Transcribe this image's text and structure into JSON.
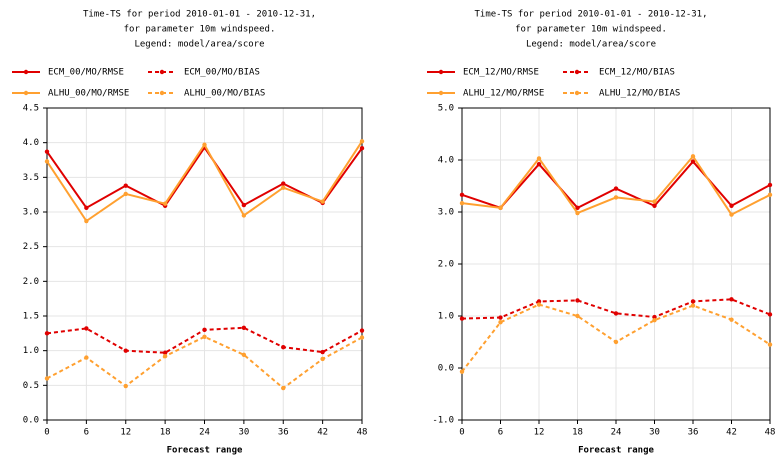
{
  "chart_data": [
    {
      "type": "line",
      "title": [
        "Time-TS for period 2010-01-01 - 2010-12-31,",
        "for parameter 10m windspeed.",
        "Legend: model/area/score"
      ],
      "x_label": "Forecast range",
      "x": [
        0,
        6,
        12,
        18,
        24,
        30,
        36,
        42,
        48
      ],
      "xlim": [
        0,
        48
      ],
      "xticks": [
        0,
        6,
        12,
        18,
        24,
        30,
        36,
        42,
        48
      ],
      "ylim": [
        0,
        4.5
      ],
      "yticks": [
        {
          "value": 0,
          "label": "0.0"
        },
        0.5,
        {
          "value": 1,
          "label": "1.0"
        },
        1.5,
        {
          "value": 2,
          "label": "2.0"
        },
        2.5,
        {
          "value": 3,
          "label": "3.0"
        },
        3.5,
        {
          "value": 4,
          "label": "4.0"
        },
        4.5
      ],
      "grid": true,
      "series": [
        {
          "name": "ECM_00/MO/RMSE",
          "color": "#e00000",
          "dashed": false,
          "values": [
            3.87,
            3.06,
            3.38,
            3.09,
            3.93,
            3.1,
            3.41,
            3.13,
            3.92
          ]
        },
        {
          "name": "ECM_00/MO/BIAS",
          "color": "#e00000",
          "dashed": true,
          "values": [
            1.25,
            1.32,
            1.0,
            0.97,
            1.3,
            1.33,
            1.05,
            0.98,
            1.29
          ]
        },
        {
          "name": "ALHU_00/MO/RMSE",
          "color": "#ffa030",
          "dashed": false,
          "values": [
            3.73,
            2.87,
            3.26,
            3.12,
            3.97,
            2.95,
            3.35,
            3.15,
            4.02
          ]
        },
        {
          "name": "ALHU_00/MO/BIAS",
          "color": "#ffa030",
          "dashed": true,
          "values": [
            0.6,
            0.9,
            0.49,
            0.92,
            1.2,
            0.94,
            0.46,
            0.88,
            1.19
          ]
        }
      ]
    },
    {
      "type": "line",
      "title": [
        "Time-TS for period 2010-01-01 - 2010-12-31,",
        "for parameter 10m windspeed.",
        "Legend: model/area/score"
      ],
      "x_label": "Forecast range",
      "x": [
        0,
        6,
        12,
        18,
        24,
        30,
        36,
        42,
        48
      ],
      "xlim": [
        0,
        48
      ],
      "xticks": [
        0,
        6,
        12,
        18,
        24,
        30,
        36,
        42,
        48
      ],
      "ylim": [
        -1,
        5
      ],
      "yticks": [
        {
          "value": -1,
          "label": "-1.0"
        },
        {
          "value": 0,
          "label": "0.0"
        },
        {
          "value": 1,
          "label": "1.0"
        },
        {
          "value": 2,
          "label": "2.0"
        },
        {
          "value": 3,
          "label": "3.0"
        },
        {
          "value": 4,
          "label": "4.0"
        },
        {
          "value": 5,
          "label": "5.0"
        }
      ],
      "grid": true,
      "series": [
        {
          "name": "ECM_12/MO/RMSE",
          "color": "#e00000",
          "dashed": false,
          "values": [
            3.33,
            3.08,
            3.92,
            3.08,
            3.45,
            3.12,
            3.97,
            3.12,
            3.52
          ]
        },
        {
          "name": "ECM_12/MO/BIAS",
          "color": "#e00000",
          "dashed": true,
          "values": [
            0.95,
            0.97,
            1.28,
            1.3,
            1.05,
            0.98,
            1.28,
            1.32,
            1.03
          ]
        },
        {
          "name": "ALHU_12/MO/RMSE",
          "color": "#ffa030",
          "dashed": false,
          "values": [
            3.17,
            3.08,
            4.03,
            2.98,
            3.28,
            3.2,
            4.07,
            2.95,
            3.33
          ]
        },
        {
          "name": "ALHU_12/MO/BIAS",
          "color": "#ffa030",
          "dashed": true,
          "values": [
            -0.07,
            0.88,
            1.22,
            1.0,
            0.5,
            0.92,
            1.2,
            0.93,
            0.45
          ]
        }
      ]
    }
  ]
}
